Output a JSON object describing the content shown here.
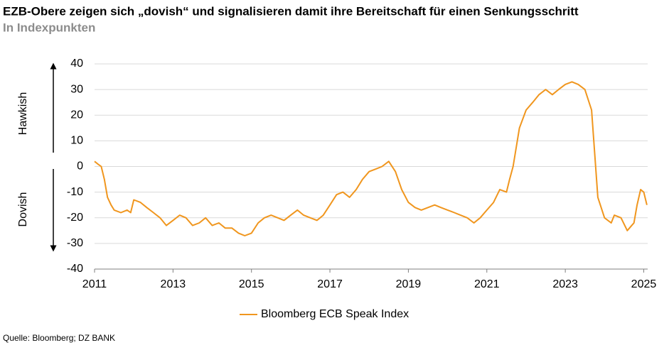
{
  "chart_data": {
    "type": "line",
    "title": "EZB-Obere zeigen sich „dovish“ und signalisieren damit ihre Bereitschaft für einen Senkungsschritt",
    "subtitle": "In Indexpunkten",
    "annotations": [
      "Hawkish",
      "Dovish"
    ],
    "source": "Quelle: Bloomberg; DZ BANK",
    "x": [
      2011.0,
      2011.08,
      2011.17,
      2011.25,
      2011.33,
      2011.42,
      2011.5,
      2011.67,
      2011.83,
      2011.92,
      2012.0,
      2012.17,
      2012.33,
      2012.5,
      2012.67,
      2012.83,
      2013.0,
      2013.17,
      2013.33,
      2013.5,
      2013.67,
      2013.83,
      2014.0,
      2014.17,
      2014.33,
      2014.5,
      2014.67,
      2014.83,
      2015.0,
      2015.17,
      2015.33,
      2015.5,
      2015.67,
      2015.83,
      2016.0,
      2016.17,
      2016.33,
      2016.5,
      2016.67,
      2016.83,
      2017.0,
      2017.17,
      2017.33,
      2017.5,
      2017.67,
      2017.83,
      2018.0,
      2018.17,
      2018.33,
      2018.5,
      2018.67,
      2018.83,
      2019.0,
      2019.17,
      2019.33,
      2019.5,
      2019.67,
      2019.83,
      2020.0,
      2020.17,
      2020.33,
      2020.5,
      2020.67,
      2020.83,
      2021.0,
      2021.17,
      2021.33,
      2021.5,
      2021.58,
      2021.67,
      2021.83,
      2022.0,
      2022.17,
      2022.33,
      2022.5,
      2022.67,
      2022.83,
      2023.0,
      2023.17,
      2023.33,
      2023.5,
      2023.67,
      2023.75,
      2023.83,
      2024.0,
      2024.17,
      2024.25,
      2024.42,
      2024.58,
      2024.75,
      2024.83,
      2024.92,
      2025.0,
      2025.08
    ],
    "series": [
      {
        "name": "Bloomberg ECB Speak Index",
        "color": "#f0961e",
        "values": [
          2,
          1,
          0,
          -5,
          -12,
          -15,
          -17,
          -18,
          -17,
          -18,
          -13,
          -14,
          -16,
          -18,
          -20,
          -23,
          -21,
          -19,
          -20,
          -23,
          -22,
          -20,
          -23,
          -22,
          -24,
          -24,
          -26,
          -27,
          -26,
          -22,
          -20,
          -19,
          -20,
          -21,
          -19,
          -17,
          -19,
          -20,
          -21,
          -19,
          -15,
          -11,
          -10,
          -12,
          -9,
          -5,
          -2,
          -1,
          0,
          2,
          -2,
          -9,
          -14,
          -16,
          -17,
          -16,
          -15,
          -16,
          -17,
          -18,
          -19,
          -20,
          -22,
          -20,
          -17,
          -14,
          -9,
          -10,
          -5,
          0,
          15,
          22,
          25,
          28,
          30,
          28,
          30,
          32,
          33,
          32,
          30,
          22,
          5,
          -12,
          -20,
          -22,
          -19,
          -20,
          -25,
          -22,
          -15,
          -9,
          -10,
          -15
        ]
      }
    ],
    "xlim": [
      2011,
      2025.1
    ],
    "xticks": [
      2011,
      2013,
      2015,
      2017,
      2019,
      2021,
      2023,
      2025
    ],
    "ylim": [
      -40,
      40
    ],
    "yticks": [
      -40,
      -30,
      -20,
      -10,
      0,
      10,
      20,
      30,
      40
    ],
    "grid": true
  }
}
